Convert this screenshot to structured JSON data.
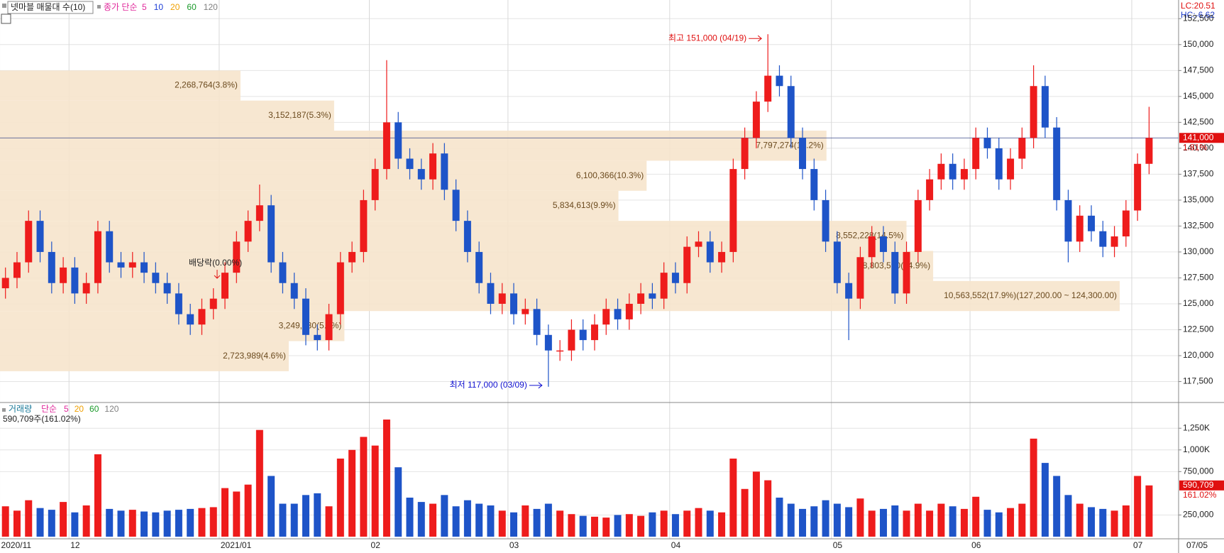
{
  "chart_data": [
    {
      "type": "candlestick",
      "legend_title": "넷마블 매물대 수(10)",
      "ma_label": "종가 단순",
      "ma_periods": [
        5,
        10,
        20,
        60,
        120
      ],
      "ma_colors": [
        "#e0289b",
        "#1f3fd6",
        "#f0a000",
        "#1a9a2a",
        "#808080"
      ],
      "up_color": "#ee1c1c",
      "down_color": "#1e54c8",
      "categories": [
        "2020/11",
        null,
        null,
        null,
        null,
        null,
        "12",
        null,
        null,
        null,
        null,
        null,
        null,
        null,
        null,
        null,
        null,
        null,
        null,
        "2021/01",
        null,
        null,
        null,
        null,
        null,
        null,
        null,
        null,
        null,
        null,
        null,
        null,
        "02",
        null,
        null,
        null,
        null,
        null,
        null,
        null,
        null,
        null,
        null,
        null,
        "03",
        null,
        null,
        null,
        null,
        null,
        null,
        null,
        null,
        null,
        null,
        null,
        null,
        null,
        "04",
        null,
        null,
        null,
        null,
        null,
        null,
        null,
        null,
        null,
        null,
        null,
        null,
        null,
        "05",
        null,
        null,
        null,
        null,
        null,
        null,
        null,
        null,
        null,
        null,
        null,
        "06",
        null,
        null,
        null,
        null,
        null,
        null,
        null,
        null,
        null,
        null,
        null,
        null,
        null,
        "07",
        null
      ],
      "open": [
        126500,
        127500,
        129000,
        133000,
        130000,
        127000,
        128500,
        126000,
        127000,
        132000,
        129000,
        128500,
        129000,
        128000,
        127000,
        126000,
        124000,
        123000,
        124500,
        125500,
        128000,
        131000,
        133000,
        134500,
        129000,
        127000,
        125500,
        122000,
        121500,
        124000,
        129000,
        130000,
        135000,
        138000,
        142500,
        139000,
        138000,
        137000,
        139500,
        136000,
        133000,
        130000,
        127000,
        125000,
        126000,
        124000,
        124500,
        122000,
        120500,
        120500,
        122500,
        121500,
        123000,
        124500,
        123500,
        125000,
        126000,
        125500,
        128000,
        127000,
        130500,
        131000,
        129000,
        130000,
        138000,
        141000,
        144500,
        147000,
        146000,
        141000,
        138000,
        135000,
        131000,
        127000,
        125500,
        129500,
        131500,
        130000,
        126000,
        130000,
        135000,
        137000,
        138500,
        137000,
        138000,
        141000,
        140000,
        137000,
        139000,
        141000,
        146000,
        142000,
        135000,
        131000,
        133500,
        132000,
        130500,
        131500,
        134000,
        138500
      ],
      "high": [
        128500,
        130000,
        134000,
        134000,
        131000,
        129500,
        129500,
        128000,
        133000,
        133000,
        130000,
        130000,
        130000,
        129000,
        128000,
        127000,
        125000,
        125500,
        126500,
        129000,
        132000,
        134000,
        136500,
        135500,
        130000,
        128000,
        126500,
        123000,
        125000,
        130000,
        131000,
        136000,
        139000,
        148500,
        143500,
        140000,
        139000,
        140500,
        140500,
        137000,
        134000,
        131000,
        128000,
        127000,
        127000,
        125500,
        125500,
        123000,
        121500,
        123500,
        123500,
        124000,
        125500,
        125500,
        126000,
        127000,
        127000,
        129000,
        129000,
        131500,
        132000,
        132000,
        131000,
        139000,
        142000,
        145500,
        151000,
        148000,
        147000,
        142000,
        139000,
        136000,
        132000,
        128000,
        130500,
        132500,
        132500,
        131000,
        131000,
        136000,
        138000,
        139500,
        139500,
        139000,
        142000,
        142000,
        141000,
        140000,
        142000,
        148000,
        147000,
        143000,
        136000,
        134500,
        134500,
        133000,
        132500,
        135000,
        139500,
        144000
      ],
      "low": [
        125500,
        126500,
        128000,
        129000,
        126000,
        126000,
        125000,
        125000,
        126000,
        128000,
        127500,
        127500,
        127000,
        126000,
        125000,
        123000,
        122000,
        122000,
        123500,
        124500,
        127000,
        130000,
        132000,
        128000,
        126000,
        124500,
        121000,
        120500,
        120500,
        123000,
        128000,
        129000,
        134000,
        137000,
        138000,
        137000,
        136000,
        136000,
        135000,
        132000,
        129000,
        126000,
        124000,
        124000,
        123000,
        123000,
        121000,
        117000,
        119500,
        119500,
        120500,
        120500,
        122000,
        122500,
        122500,
        124000,
        124500,
        124500,
        126000,
        126000,
        129500,
        128000,
        128000,
        129000,
        137000,
        140000,
        143500,
        145000,
        140000,
        137000,
        134000,
        130000,
        126000,
        121500,
        124500,
        128500,
        129000,
        125000,
        125000,
        129000,
        134000,
        136000,
        136000,
        136000,
        137000,
        139000,
        136000,
        136000,
        138000,
        140000,
        141000,
        134000,
        129000,
        130000,
        131000,
        129500,
        129500,
        130500,
        133000,
        137500
      ],
      "close": [
        127500,
        129000,
        133000,
        130000,
        127000,
        128500,
        126000,
        127000,
        132000,
        129000,
        128500,
        129000,
        128000,
        127000,
        126000,
        124000,
        123000,
        124500,
        125500,
        128000,
        131000,
        133000,
        134500,
        129000,
        127000,
        125500,
        122000,
        121500,
        124000,
        129000,
        130000,
        135000,
        138000,
        142500,
        139000,
        138000,
        137000,
        139500,
        136000,
        133000,
        130000,
        127000,
        125000,
        126000,
        124000,
        124500,
        122000,
        120500,
        120500,
        122500,
        121500,
        123000,
        124500,
        123500,
        125000,
        126000,
        125500,
        128000,
        127000,
        130500,
        131000,
        129000,
        130000,
        138000,
        141000,
        144500,
        147000,
        146000,
        141000,
        138000,
        135000,
        131000,
        127000,
        125500,
        129500,
        131500,
        130000,
        126000,
        130000,
        135000,
        137000,
        138500,
        137000,
        138000,
        141000,
        140000,
        137000,
        139000,
        141000,
        146000,
        142000,
        135000,
        131000,
        133500,
        132000,
        130500,
        131500,
        134000,
        138500,
        141000
      ],
      "ylim": [
        115550,
        154300
      ],
      "yticks": [
        {
          "value": 117500,
          "label": "117,500"
        },
        {
          "value": 120000,
          "label": "120,000"
        },
        {
          "value": 122500,
          "label": "122,500"
        },
        {
          "value": 125000,
          "label": "125,000"
        },
        {
          "value": 127500,
          "label": "127,500"
        },
        {
          "value": 130000,
          "label": "130,000"
        },
        {
          "value": 132500,
          "label": "132,500"
        },
        {
          "value": 135000,
          "label": "135,000"
        },
        {
          "value": 137500,
          "label": "137,500"
        },
        {
          "value": 140000,
          "label": "140,000"
        },
        {
          "value": 142500,
          "label": "142,500"
        },
        {
          "value": 145000,
          "label": "145,000"
        },
        {
          "value": 147500,
          "label": "147,500"
        },
        {
          "value": 150000,
          "label": "150,000"
        },
        {
          "value": 152500,
          "label": "152,500"
        }
      ],
      "grid": true,
      "profile_bins": [
        147500,
        144600,
        141700,
        138800,
        135900,
        133000,
        130100,
        127200,
        124300,
        121400,
        118500
      ],
      "profile_values": [
        2268764,
        3152187,
        7797274,
        6100366,
        5834613,
        8552228,
        8803590,
        10563552,
        3249330,
        2723989
      ],
      "profile_labels": [
        "2,268,764(3.8%)",
        "3,152,187(5.3%)",
        "7,797,274(13.2%)",
        "6,100,366(10.3%)",
        "5,834,613(9.9%)",
        "8,552,228(14.5%)",
        "8,803,590(14.9%)",
        "10,563,552(17.9%)(127,200.00 ~ 124,300.00)",
        "3,249,330(5.5%)",
        "2,723,989(4.6%)"
      ],
      "current_price": {
        "value": 141000,
        "label": "141,000"
      },
      "change_label": "1.81%",
      "high_note": "최고 151,000 (04/19)",
      "low_note": "최저 117,000 (03/09)",
      "dividend_note": "배당락(0.00%)",
      "lc_label": "LC:20.51",
      "hc_label": "HC:-6.62",
      "last_date": "07/05"
    },
    {
      "type": "bar",
      "legend_title": "거래량",
      "ma_label": "단순",
      "ma_periods": [
        5,
        20,
        60,
        120
      ],
      "ma_colors": [
        "#e0289b",
        "#f0a000",
        "#1a9a2a",
        "#808080"
      ],
      "summary": "590,709주(161.02%)",
      "values": [
        350000,
        300000,
        420000,
        330000,
        310000,
        400000,
        280000,
        360000,
        950000,
        320000,
        300000,
        310000,
        290000,
        280000,
        300000,
        310000,
        320000,
        330000,
        340000,
        560000,
        520000,
        600000,
        1230000,
        700000,
        380000,
        380000,
        480000,
        500000,
        350000,
        900000,
        1000000,
        1150000,
        1050000,
        1350000,
        800000,
        450000,
        400000,
        380000,
        480000,
        350000,
        420000,
        380000,
        360000,
        300000,
        280000,
        360000,
        320000,
        380000,
        300000,
        260000,
        240000,
        230000,
        220000,
        250000,
        260000,
        240000,
        280000,
        300000,
        260000,
        300000,
        330000,
        300000,
        280000,
        900000,
        550000,
        750000,
        650000,
        450000,
        380000,
        320000,
        350000,
        420000,
        380000,
        340000,
        440000,
        300000,
        320000,
        360000,
        300000,
        380000,
        300000,
        380000,
        350000,
        320000,
        460000,
        310000,
        280000,
        330000,
        380000,
        1130000,
        850000,
        700000,
        480000,
        380000,
        340000,
        320000,
        300000,
        360000,
        700000,
        590709
      ],
      "ylim": [
        0,
        1530000
      ],
      "yticks": [
        {
          "value": 250000,
          "label": "250,000"
        },
        {
          "value": 750000,
          "label": "750,000"
        },
        {
          "value": 1000000,
          "label": "1,000K"
        },
        {
          "value": 1250000,
          "label": "1,250K"
        }
      ],
      "current_volume": {
        "value": 590709,
        "label": "590,709"
      },
      "ratio_label": "161.02%"
    }
  ]
}
